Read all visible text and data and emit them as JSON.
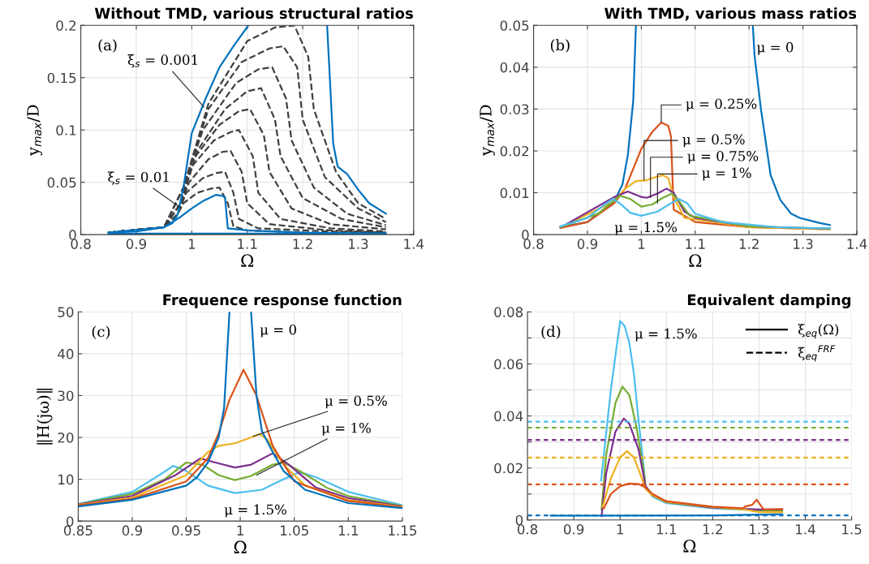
{
  "chart_data": [
    {
      "type": "line",
      "title": "Without TMD, various structural ratios",
      "xlabel": "Ω",
      "ylabel": "y$_{max}$/D",
      "xlim": [
        0.8,
        1.4
      ],
      "ylim": [
        0,
        0.2
      ],
      "xticks": [
        0.8,
        0.9,
        1,
        1.1,
        1.2,
        1.3,
        1.4
      ],
      "yticks": [
        0,
        0.05,
        0.1,
        0.15,
        0.2
      ],
      "grid": true,
      "legend": false,
      "annotations": [
        "(a)",
        {
          "text": "ξ$_{s}$ = 0.001",
          "x": 1.022,
          "y": 0.122
        },
        {
          "text": "ξ$_{s}$ = 0.01",
          "x": 0.979,
          "y": 0.026
        }
      ],
      "series": [
        {
          "color": "#404040",
          "line_style": "dashed",
          "x": [
            0.85,
            0.95,
            0.985,
            1.03,
            1.1,
            1.15,
            1.185,
            1.21,
            1.22,
            1.26,
            1.3,
            1.35
          ],
          "values": [
            0.002,
            0.007,
            0.045,
            0.125,
            0.185,
            0.198,
            0.2,
            0.17,
            0.12,
            0.06,
            0.03,
            0.015
          ]
        },
        {
          "color": "#404040",
          "line_style": "dashed",
          "x": [
            0.85,
            0.95,
            0.985,
            1.03,
            1.09,
            1.14,
            1.165,
            1.19,
            1.2,
            1.24,
            1.3,
            1.35
          ],
          "values": [
            0.002,
            0.007,
            0.045,
            0.12,
            0.165,
            0.178,
            0.18,
            0.16,
            0.11,
            0.055,
            0.025,
            0.012
          ]
        },
        {
          "color": "#404040",
          "line_style": "dashed",
          "x": [
            0.85,
            0.95,
            0.985,
            1.02,
            1.08,
            1.12,
            1.145,
            1.17,
            1.18,
            1.22,
            1.28,
            1.35
          ],
          "values": [
            0.002,
            0.007,
            0.045,
            0.1,
            0.145,
            0.158,
            0.16,
            0.13,
            0.09,
            0.045,
            0.02,
            0.009
          ]
        },
        {
          "color": "#404040",
          "line_style": "dashed",
          "x": [
            0.85,
            0.95,
            0.98,
            1.01,
            1.06,
            1.1,
            1.125,
            1.15,
            1.16,
            1.2,
            1.27,
            1.35
          ],
          "values": [
            0.002,
            0.007,
            0.03,
            0.08,
            0.12,
            0.137,
            0.14,
            0.11,
            0.075,
            0.035,
            0.015,
            0.007
          ]
        },
        {
          "color": "#404040",
          "line_style": "dashed",
          "x": [
            0.85,
            0.95,
            0.98,
            1.0,
            1.05,
            1.085,
            1.105,
            1.13,
            1.14,
            1.18,
            1.25,
            1.35
          ],
          "values": [
            0.002,
            0.007,
            0.03,
            0.07,
            0.105,
            0.118,
            0.12,
            0.095,
            0.06,
            0.025,
            0.01,
            0.005
          ]
        },
        {
          "color": "#404040",
          "line_style": "dashed",
          "x": [
            0.85,
            0.95,
            0.98,
            1.0,
            1.04,
            1.07,
            1.085,
            1.11,
            1.12,
            1.16,
            1.25,
            1.35
          ],
          "values": [
            0.002,
            0.007,
            0.03,
            0.065,
            0.09,
            0.098,
            0.1,
            0.075,
            0.04,
            0.015,
            0.006,
            0.003
          ]
        },
        {
          "color": "#404040",
          "line_style": "dashed",
          "x": [
            0.85,
            0.95,
            0.975,
            0.995,
            1.03,
            1.055,
            1.07,
            1.09,
            1.1,
            1.14,
            1.25,
            1.35
          ],
          "values": [
            0.002,
            0.007,
            0.02,
            0.05,
            0.072,
            0.079,
            0.08,
            0.06,
            0.03,
            0.01,
            0.004,
            0.002
          ]
        },
        {
          "color": "#404040",
          "line_style": "dashed",
          "x": [
            0.85,
            0.95,
            0.975,
            0.99,
            1.02,
            1.045,
            1.06,
            1.075,
            1.085,
            1.12,
            1.25,
            1.35
          ],
          "values": [
            0.002,
            0.007,
            0.02,
            0.04,
            0.054,
            0.059,
            0.06,
            0.04,
            0.015,
            0.006,
            0.003,
            0.002
          ]
        },
        {
          "color": "#404040",
          "line_style": "dashed",
          "x": [
            0.85,
            0.95,
            0.97,
            0.985,
            1.01,
            1.035,
            1.05,
            1.065,
            1.075,
            1.1,
            1.2,
            1.35
          ],
          "values": [
            0.002,
            0.007,
            0.015,
            0.03,
            0.04,
            0.044,
            0.045,
            0.03,
            0.008,
            0.004,
            0.002,
            0.001
          ]
        },
        {
          "color": "#0072bd",
          "x": [
            0.85,
            0.9,
            0.95,
            0.965,
            0.975,
            0.985,
            1,
            1.025,
            1.05,
            1.075,
            1.102,
            1.2,
            1.244,
            1.255,
            1.263,
            1.28,
            1.3,
            1.32,
            1.35
          ],
          "values": [
            0.002,
            0.003,
            0.007,
            0.011,
            0.02,
            0.045,
            0.097,
            0.13,
            0.16,
            0.18,
            0.2,
            null,
            0.2,
            0.087,
            0.065,
            0.058,
            0.043,
            0.03,
            0.02
          ]
        },
        {
          "color": "#0072bd",
          "x": [
            0.85,
            1.35
          ],
          "values": [
            0.001,
            0.001
          ]
        },
        {
          "color": "#0072bd",
          "x": [
            0.85,
            0.95,
            0.98,
            1,
            1.02,
            1.043,
            1.056,
            1.06,
            1.065,
            1.1,
            1.2,
            1.35
          ],
          "values": [
            0.002,
            0.007,
            0.017,
            0.025,
            0.032,
            0.038,
            0.037,
            0.035,
            0.006,
            0.004,
            0.002,
            0.001
          ]
        }
      ]
    },
    {
      "type": "line",
      "title": "With TMD, various mass ratios",
      "xlabel": "Ω",
      "ylabel": "y$_{max}$/D",
      "xlim": [
        0.8,
        1.4
      ],
      "ylim": [
        0,
        0.05
      ],
      "xticks": [
        0.8,
        0.9,
        1,
        1.1,
        1.2,
        1.3,
        1.4
      ],
      "yticks": [
        0,
        0.01,
        0.02,
        0.03,
        0.04,
        0.05
      ],
      "grid": true,
      "legend": false,
      "annotations": [
        "(b)",
        "μ = 0",
        {
          "text": "μ = 0.25%",
          "x": 1.037,
          "y": 0.0268
        },
        {
          "text": "μ = 0.5%",
          "x": 1.005,
          "y": 0.013
        },
        {
          "text": "μ = 0.75%",
          "x": 1.017,
          "y": 0.0088
        },
        {
          "text": "μ = 1%",
          "x": 1.03,
          "y": 0.0075
        },
        "μ = 1.5%"
      ],
      "series": [
        {
          "color": "#0072bd",
          "x": [
            0.85,
            0.9,
            0.95,
            0.965,
            0.975,
            0.985,
            0.99,
            1.1,
            1.207,
            1.21,
            1.222,
            1.24,
            1.258,
            1.278,
            1.294,
            1.33,
            1.35
          ],
          "values": [
            0.0018,
            0.003,
            0.008,
            0.012,
            0.019,
            0.032,
            0.05,
            null,
            0.05,
            0.043,
            0.03,
            0.0142,
            0.0083,
            0.005,
            0.004,
            0.0028,
            0.0023
          ]
        },
        {
          "color": "#d95319",
          "x": [
            0.85,
            0.9,
            0.95,
            0.97,
            1,
            1.02,
            1.037,
            1.05,
            1.055,
            1.06,
            1.1,
            1.2,
            1.35
          ],
          "values": [
            0.0016,
            0.003,
            0.0075,
            0.011,
            0.0205,
            0.0245,
            0.0268,
            0.026,
            0.0235,
            0.006,
            0.003,
            0.0018,
            0.0013
          ]
        },
        {
          "color": "#edb120",
          "x": [
            0.85,
            0.95,
            0.97,
            0.99,
            1.01,
            1.02,
            1.04,
            1.05,
            1.06,
            1.08,
            1.2,
            1.35
          ],
          "values": [
            0.0017,
            0.008,
            0.011,
            0.0128,
            0.013,
            0.0135,
            0.0142,
            0.0135,
            0.009,
            0.004,
            0.0018,
            0.0013
          ]
        },
        {
          "color": "#7e2f8e",
          "x": [
            0.85,
            0.95,
            0.975,
            1,
            1.01,
            1.03,
            1.047,
            1.06,
            1.08,
            1.1,
            1.2,
            1.35
          ],
          "values": [
            0.0017,
            0.009,
            0.0103,
            0.009,
            0.0088,
            0.0098,
            0.011,
            0.01,
            0.0055,
            0.004,
            0.002,
            0.0014
          ]
        },
        {
          "color": "#77ac30",
          "x": [
            0.85,
            0.92,
            0.96,
            0.98,
            1,
            1.02,
            1.04,
            1.057,
            1.07,
            1.09,
            1.2,
            1.35
          ],
          "values": [
            0.0018,
            0.005,
            0.0093,
            0.0085,
            0.0067,
            0.0072,
            0.0088,
            0.0098,
            0.008,
            0.0045,
            0.002,
            0.0014
          ]
        },
        {
          "color": "#4dbeee",
          "x": [
            0.85,
            0.9,
            0.93,
            0.947,
            0.96,
            0.98,
            1,
            1.03,
            1.055,
            1.07,
            1.085,
            1.1,
            1.15,
            1.25,
            1.35
          ],
          "values": [
            0.002,
            0.004,
            0.007,
            0.0085,
            0.0075,
            0.0052,
            0.0045,
            0.0055,
            0.0075,
            0.0085,
            0.0075,
            0.005,
            0.003,
            0.0018,
            0.0015
          ]
        }
      ]
    },
    {
      "type": "line",
      "title": "Frequence response function",
      "xlabel": "Ω",
      "ylabel": "‖H(jω)‖",
      "xlim": [
        0.85,
        1.15
      ],
      "ylim": [
        0,
        50
      ],
      "xticks": [
        0.85,
        0.9,
        0.95,
        1,
        1.05,
        1.1,
        1.15
      ],
      "yticks": [
        0,
        10,
        20,
        30,
        40,
        50
      ],
      "grid": true,
      "legend": false,
      "annotations": [
        "(c)",
        "μ = 0",
        {
          "text": "μ = 0.5%",
          "x": 1.012,
          "y": 20.3
        },
        {
          "text": "μ = 1%",
          "x": 1.015,
          "y": 11
        },
        "μ = 1.5%"
      ],
      "series": [
        {
          "color": "#4dbeee",
          "x": [
            0.85,
            0.9,
            0.925,
            0.938,
            0.95,
            0.97,
            0.995,
            1.02,
            1.04,
            1.055,
            1.07,
            1.1,
            1.15
          ],
          "values": [
            4.1,
            7,
            11,
            13.2,
            12,
            8.5,
            6.7,
            7.5,
            10,
            11.7,
            10.5,
            7,
            3.8
          ]
        },
        {
          "color": "#77ac30",
          "x": [
            0.85,
            0.9,
            0.93,
            0.95,
            0.965,
            0.98,
            0.995,
            1.01,
            1.03,
            1.04,
            1.055,
            1.08,
            1.1,
            1.15
          ],
          "values": [
            4,
            6.5,
            10,
            14,
            13.5,
            11,
            9.8,
            10.8,
            13.5,
            14,
            12,
            8,
            6,
            3.6
          ]
        },
        {
          "color": "#7e2f8e",
          "x": [
            0.85,
            0.9,
            0.94,
            0.963,
            0.98,
            0.995,
            1.01,
            1.03,
            1.045,
            1.07,
            1.1,
            1.15
          ],
          "values": [
            4,
            6,
            11,
            15,
            13.8,
            12.8,
            13.5,
            16.2,
            13.5,
            8,
            5.5,
            3.5
          ]
        },
        {
          "color": "#edb120",
          "x": [
            0.85,
            0.9,
            0.95,
            0.97,
            0.98,
            0.995,
            1.01,
            1.018,
            1.025,
            1.04,
            1.06,
            1.1,
            1.15
          ],
          "values": [
            3.9,
            5.6,
            11,
            16.5,
            18,
            18.6,
            20,
            20.8,
            19.5,
            13.5,
            8.5,
            5,
            3.4
          ]
        },
        {
          "color": "#d95319",
          "x": [
            0.85,
            0.9,
            0.95,
            0.97,
            0.98,
            0.99,
            1.003,
            1.015,
            1.03,
            1.05,
            1.1,
            1.15
          ],
          "values": [
            3.8,
            5.3,
            9.5,
            15,
            21,
            29,
            36.2,
            30,
            18,
            9.5,
            4.8,
            3.3
          ]
        },
        {
          "color": "#0072bd",
          "x": [
            0.85,
            0.9,
            0.95,
            0.96,
            0.97,
            0.98,
            0.985,
            0.99,
            1,
            1.01,
            1.015,
            1.02,
            1.03,
            1.04,
            1.06,
            1.1,
            1.15
          ],
          "values": [
            3.5,
            5.1,
            8.5,
            10.5,
            14,
            20,
            27,
            50,
            null,
            50,
            30,
            21.5,
            16.5,
            12,
            7.5,
            4.3,
            3.1
          ]
        }
      ]
    },
    {
      "type": "line",
      "title": "Equivalent damping",
      "xlabel": "Ω",
      "xlim": [
        0.8,
        1.5
      ],
      "ylim": [
        0,
        0.08
      ],
      "xticks": [
        0.8,
        0.9,
        1,
        1.1,
        1.2,
        1.3,
        1.4,
        1.5
      ],
      "yticks": [
        0,
        {
          "value": 0.01,
          "label": null
        },
        0.02,
        {
          "value": 0.03,
          "label": null
        },
        0.04,
        {
          "value": 0.05,
          "label": null
        },
        0.06,
        {
          "value": 0.07,
          "label": null
        },
        0.08
      ],
      "grid": true,
      "legend": "top right",
      "annotations": [
        "(d)",
        "μ = 1.5%"
      ],
      "ref_lines": [
        {
          "axis": "y",
          "value": 0.0378,
          "color": "#4dbeee",
          "line_style": "dashed"
        },
        {
          "axis": "y",
          "value": 0.0355,
          "color": "#77ac30",
          "line_style": "dashed"
        },
        {
          "axis": "y",
          "value": 0.0308,
          "color": "#7e2f8e",
          "line_style": "dashed"
        },
        {
          "axis": "y",
          "value": 0.024,
          "color": "#edb120",
          "line_style": "dashed"
        },
        {
          "axis": "y",
          "value": 0.0137,
          "color": "#d95319",
          "line_style": "dashed"
        },
        {
          "axis": "y",
          "value": 0.0018,
          "color": "#0072bd",
          "line_style": "dashed"
        }
      ],
      "series": [
        {
          "name": "ξ$_{eq}$(Ω)",
          "color": "#000000",
          "line_style": "solid"
        },
        {
          "name": "ξ$_{eq}$$^{FRF}$",
          "color": "#000000",
          "line_style": "dashed"
        },
        {
          "color": "#0072bd",
          "x": [
            0.85,
            1,
            1.2,
            1.35
          ],
          "values": [
            0.0017,
            0.0017,
            0.0018,
            0.0022
          ]
        },
        {
          "color": "#4dbeee",
          "x": [
            0.959,
            0.98,
            1,
            1.01,
            1.02,
            1.03,
            1.04,
            1.05,
            1.055,
            1.07,
            1.1,
            1.2,
            1.3,
            1.35
          ],
          "values": [
            0.0151,
            0.05,
            0.0765,
            0.0745,
            0.068,
            0.056,
            0.038,
            0.022,
            0.013,
            0.009,
            0.0065,
            0.0045,
            0.0037,
            0.0035
          ]
        },
        {
          "color": "#77ac30",
          "x": [
            0.96,
            0.97,
            0.99,
            1.005,
            1.02,
            1.035,
            1.05,
            1.055,
            1.07,
            1.1,
            1.2,
            1.3,
            1.35
          ],
          "values": [
            0.004,
            0.025,
            0.045,
            0.0513,
            0.048,
            0.036,
            0.02,
            0.013,
            0.0095,
            0.0068,
            0.0047,
            0.0038,
            0.0037
          ]
        },
        {
          "color": "#7e2f8e",
          "x": [
            0.96,
            0.97,
            0.99,
            1.008,
            1.02,
            1.04,
            1.055,
            1.07,
            1.1,
            1.2,
            1.3,
            1.35
          ],
          "values": [
            0.0015,
            0.018,
            0.034,
            0.039,
            0.037,
            0.027,
            0.013,
            0.0095,
            0.007,
            0.0048,
            0.004,
            0.004
          ]
        },
        {
          "color": "#edb120",
          "x": [
            0.962,
            0.98,
            1,
            1.015,
            1.03,
            1.045,
            1.055,
            1.07,
            1.1,
            1.2,
            1.27,
            1.3,
            1.35
          ],
          "values": [
            0.005,
            0.016,
            0.024,
            0.0265,
            0.024,
            0.017,
            0.012,
            0.0095,
            0.007,
            0.005,
            0.004,
            0.003,
            0.003
          ]
        },
        {
          "color": "#d95319",
          "x": [
            0.965,
            0.98,
            1,
            1.02,
            1.04,
            1.055,
            1.07,
            1.1,
            1.2,
            1.265,
            1.27,
            1.285,
            1.295,
            1.31,
            1.35
          ],
          "values": [
            0.0045,
            0.01,
            0.013,
            0.014,
            0.0138,
            0.0125,
            0.01,
            0.0072,
            0.0051,
            0.0045,
            0.0052,
            0.0058,
            0.0078,
            0.004,
            0.0042
          ]
        }
      ]
    }
  ]
}
